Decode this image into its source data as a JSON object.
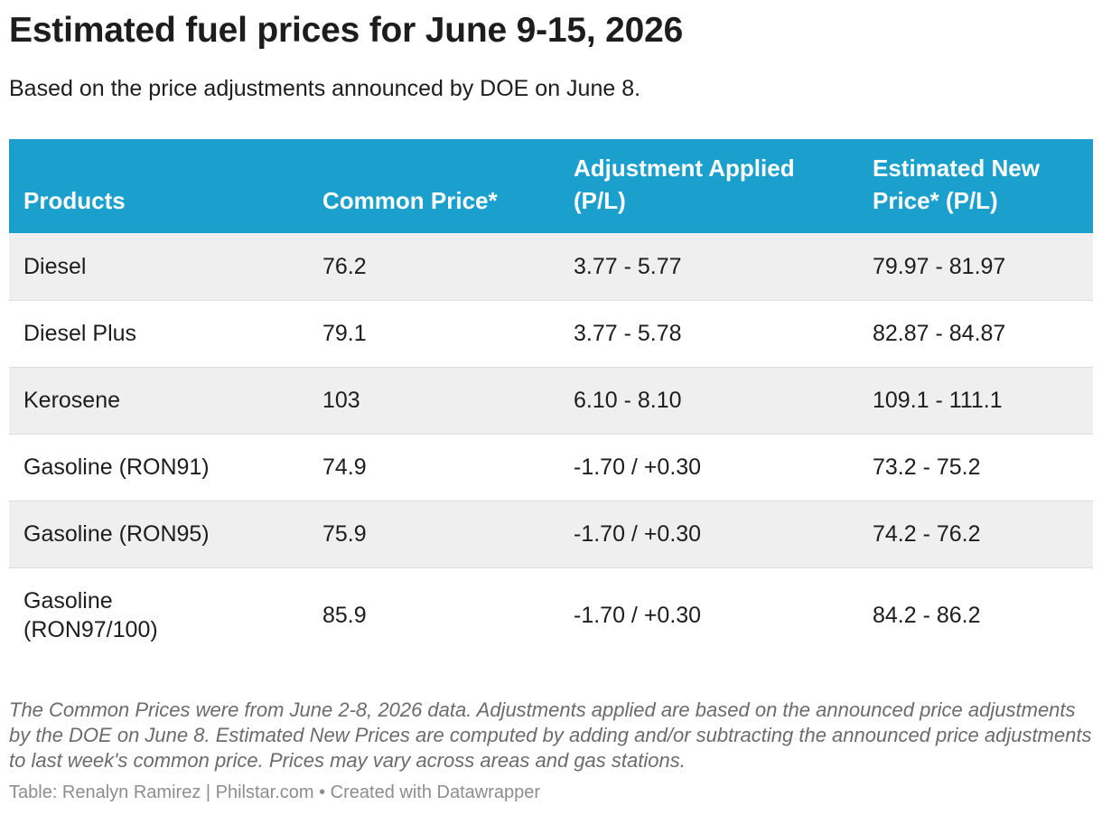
{
  "title": "Estimated fuel prices for June 9-15, 2026",
  "subtitle": "Based on the price adjustments announced by DOE on June 8.",
  "colors": {
    "header_background": "#1ba0ce",
    "header_text": "#ffffff",
    "row_stripe": "#efefef",
    "notes_text": "#6b6b6b"
  },
  "chart_data": {
    "type": "table",
    "title": "Estimated fuel prices for June 9-15, 2026",
    "columns": [
      "Products",
      "Common Price*",
      "Adjustment Applied (P/L)",
      "Estimated New Price* (P/L)"
    ],
    "rows": [
      [
        "Diesel",
        "76.2",
        "3.77 - 5.77",
        "79.97 - 81.97"
      ],
      [
        "Diesel Plus",
        "79.1",
        "3.77 - 5.78",
        "82.87 - 84.87"
      ],
      [
        "Kerosene",
        "103",
        "6.10 - 8.10",
        "109.1 - 111.1"
      ],
      [
        "Gasoline (RON91)",
        "74.9",
        "-1.70 / +0.30",
        "73.2 - 75.2"
      ],
      [
        "Gasoline (RON95)",
        "75.9",
        "-1.70 / +0.30",
        "74.2 - 76.2"
      ],
      [
        "Gasoline (RON97/100)",
        "85.9",
        "-1.70 / +0.30",
        "84.2 - 86.2"
      ]
    ]
  },
  "notes": "The Common Prices were from June 2-8, 2026 data. Adjustments applied are based on the announced price adjustments by the DOE on June 8. Estimated New Prices are computed by adding and/or subtracting the announced price adjustments to last week's common price. Prices may vary across areas and gas stations.",
  "footer": "Table: Renalyn Ramirez | Philstar.com • Created with Datawrapper"
}
